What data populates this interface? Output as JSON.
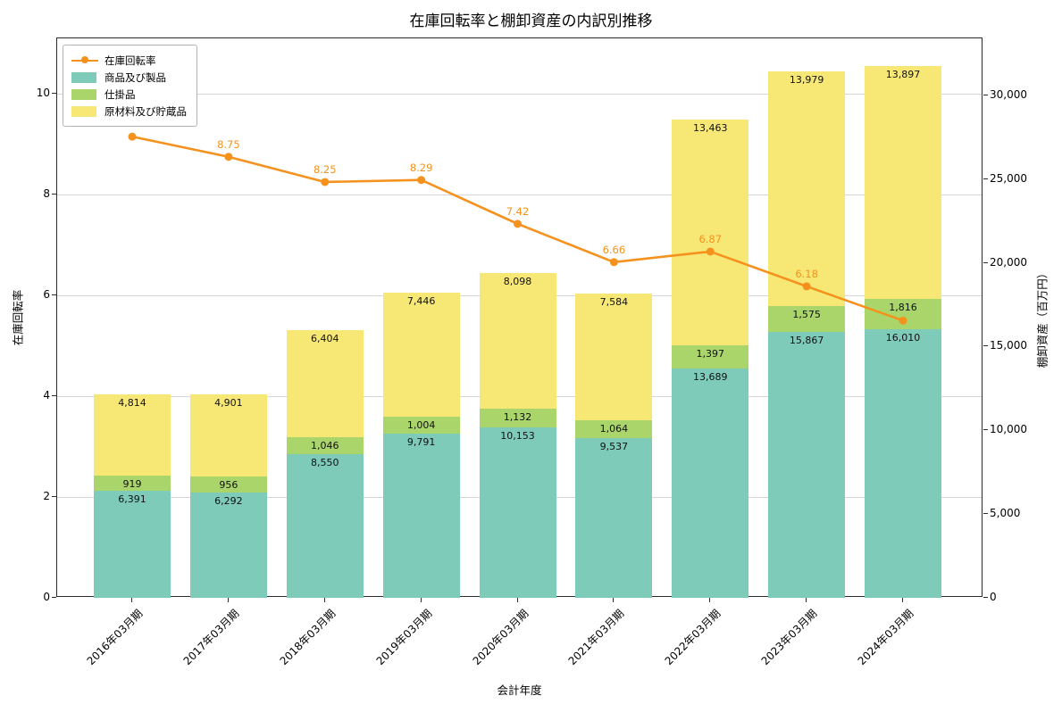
{
  "title": "在庫回転率と棚卸資産の内訳別推移",
  "axes": {
    "x_label": "会計年度",
    "y_left_label": "在庫回転率",
    "y_right_label": "棚卸資産（百万円）",
    "y_left_ticks": [
      0,
      2,
      4,
      6,
      8,
      10
    ],
    "y_right_ticks": [
      0,
      5000,
      10000,
      15000,
      20000,
      25000,
      30000
    ]
  },
  "legend": {
    "items": [
      {
        "label": "在庫回転率",
        "type": "line",
        "color": "#f5921e"
      },
      {
        "label": "商品及び製品",
        "type": "patch",
        "color": "#7dcbb8"
      },
      {
        "label": "仕掛品",
        "type": "patch",
        "color": "#a9d56a"
      },
      {
        "label": "原材料及び貯蔵品",
        "type": "patch",
        "color": "#f7e876"
      }
    ]
  },
  "chart_data": {
    "type": "bar",
    "subtype": "stacked-bars-with-line-overlay",
    "grid": "horizontal",
    "legend_position": "upper-left",
    "categories": [
      "2016年03月期",
      "2017年03月期",
      "2018年03月期",
      "2019年03月期",
      "2020年03月期",
      "2021年03月期",
      "2022年03月期",
      "2023年03月期",
      "2024年03月期"
    ],
    "y_left_range": [
      0,
      11.1
    ],
    "y_right_range": [
      0,
      33400
    ],
    "series": [
      {
        "name": "商品及び製品",
        "type": "bar",
        "axis": "right",
        "color": "#7dcbb8",
        "values": [
          6391,
          6292,
          8550,
          9791,
          10153,
          9537,
          13689,
          15867,
          16010
        ]
      },
      {
        "name": "仕掛品",
        "type": "bar",
        "axis": "right",
        "color": "#a9d56a",
        "values": [
          919,
          956,
          1046,
          1004,
          1132,
          1064,
          1397,
          1575,
          1816
        ]
      },
      {
        "name": "原材料及び貯蔵品",
        "type": "bar",
        "axis": "right",
        "color": "#f7e876",
        "values": [
          4814,
          4901,
          6404,
          7446,
          8098,
          7584,
          13463,
          13979,
          13897
        ]
      },
      {
        "name": "在庫回転率",
        "type": "line",
        "axis": "left",
        "color": "#f5921e",
        "values": [
          9.15,
          8.75,
          8.25,
          8.29,
          7.42,
          6.66,
          6.87,
          6.18,
          5.5
        ],
        "point_labels": [
          "",
          "8.75",
          "8.25",
          "8.29",
          "7.42",
          "6.66",
          "6.87",
          "6.18",
          ""
        ]
      }
    ]
  }
}
